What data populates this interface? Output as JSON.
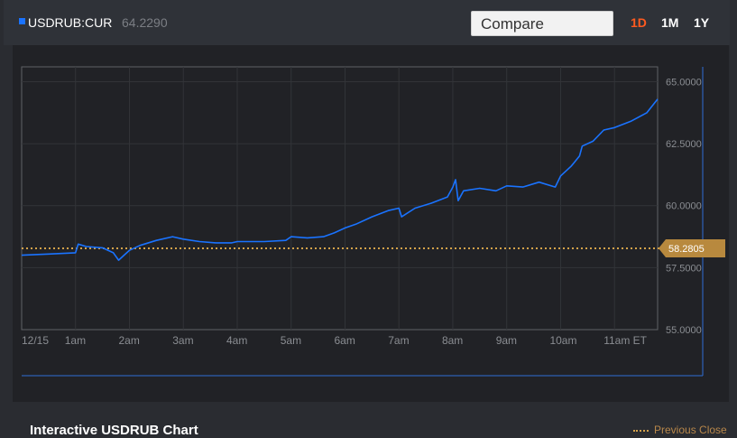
{
  "header": {
    "ticker": "USDRUB:CUR",
    "last_price": "64.2290",
    "compare_label": "Compare",
    "ranges": [
      {
        "label": "1D",
        "active": true
      },
      {
        "label": "1M",
        "active": false
      },
      {
        "label": "1Y",
        "active": false
      }
    ]
  },
  "footer": {
    "title": "Interactive USDRUB Chart",
    "legend_label": "Previous Close"
  },
  "colors": {
    "series": "#1a73ff",
    "previous_close": "#d4a24a",
    "active_range": "#ff5a1f"
  },
  "chart_data": {
    "type": "line",
    "x_ticks": [
      "12/15",
      "1am",
      "2am",
      "3am",
      "4am",
      "5am",
      "6am",
      "7am",
      "8am",
      "9am",
      "10am",
      "11am ET"
    ],
    "y_ticks": [
      "55.0000",
      "57.5000",
      "60.0000",
      "62.5000",
      "65.0000"
    ],
    "ylim": [
      55.0,
      65.6
    ],
    "grid": true,
    "previous_close": {
      "label": "58.2805",
      "value": 58.2805
    },
    "series": [
      {
        "x": [
          0.0,
          0.5,
          1.0,
          1.05,
          1.2,
          1.5,
          1.7,
          1.8,
          1.9,
          2.0,
          2.2,
          2.5,
          2.8,
          3.0,
          3.3,
          3.6,
          3.9,
          4.0,
          4.5,
          4.9,
          5.0,
          5.3,
          5.6,
          5.8,
          6.0,
          6.2,
          6.5,
          6.8,
          7.0,
          7.05,
          7.3,
          7.6,
          7.9,
          8.0,
          8.05,
          8.1,
          8.2,
          8.5,
          8.8,
          9.0,
          9.3,
          9.6,
          9.9,
          10.0,
          10.2,
          10.35,
          10.4,
          10.6,
          10.8,
          11.0,
          11.3,
          11.6,
          11.8
        ],
        "y": [
          58.0,
          58.05,
          58.1,
          58.45,
          58.35,
          58.3,
          58.1,
          57.8,
          58.0,
          58.2,
          58.4,
          58.6,
          58.75,
          58.65,
          58.55,
          58.5,
          58.5,
          58.55,
          58.55,
          58.6,
          58.75,
          58.7,
          58.75,
          58.9,
          59.1,
          59.25,
          59.55,
          59.8,
          59.9,
          59.55,
          59.9,
          60.1,
          60.35,
          60.75,
          61.05,
          60.2,
          60.6,
          60.7,
          60.6,
          60.8,
          60.75,
          60.95,
          60.75,
          61.2,
          61.6,
          62.0,
          62.4,
          62.6,
          63.05,
          63.15,
          63.4,
          63.75,
          64.3
        ]
      }
    ]
  }
}
